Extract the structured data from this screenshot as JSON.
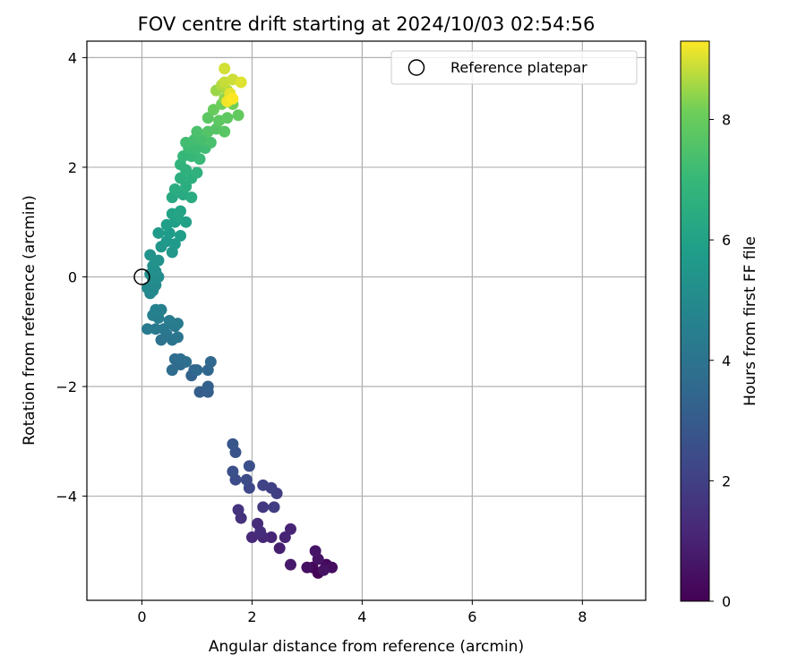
{
  "chart_data": {
    "type": "scatter",
    "title": "FOV centre drift starting at 2024/10/03 02:54:56",
    "xlabel": "Angular distance from reference (arcmin)",
    "ylabel": "Rotation from reference (arcmin)",
    "xlim": [
      -1.0,
      9.15
    ],
    "ylim": [
      -5.9,
      4.3
    ],
    "xticks": [
      0,
      2,
      4,
      6,
      8
    ],
    "xtick_labels": [
      "0",
      "2",
      "4",
      "6",
      "8"
    ],
    "yticks": [
      -4,
      -2,
      0,
      2,
      4
    ],
    "ytick_labels": [
      "−4",
      "−2",
      "0",
      "2",
      "4"
    ],
    "grid": true,
    "legend": {
      "placement": "top-right",
      "entries": [
        "Reference platepar"
      ]
    },
    "colormap": "viridis",
    "colorbar": {
      "label": "Hours from first FF file",
      "range": [
        0,
        9.3
      ],
      "ticks": [
        0,
        2,
        4,
        6,
        8
      ],
      "tick_labels": [
        "0",
        "2",
        "4",
        "6",
        "8"
      ]
    },
    "reference_point": {
      "x": 0.0,
      "y": 0.0
    },
    "points": [
      {
        "x": 3.2,
        "y": -5.4,
        "h": 0.05
      },
      {
        "x": 3.1,
        "y": -5.3,
        "h": 0.15
      },
      {
        "x": 3.35,
        "y": -5.25,
        "h": 0.25
      },
      {
        "x": 3.45,
        "y": -5.3,
        "h": 0.35
      },
      {
        "x": 3.0,
        "y": -5.3,
        "h": 0.45
      },
      {
        "x": 3.2,
        "y": -5.15,
        "h": 0.55
      },
      {
        "x": 3.15,
        "y": -5.0,
        "h": 0.6
      },
      {
        "x": 3.3,
        "y": -5.35,
        "h": 0.5
      },
      {
        "x": 2.7,
        "y": -5.25,
        "h": 0.75
      },
      {
        "x": 2.5,
        "y": -4.95,
        "h": 0.9
      },
      {
        "x": 2.6,
        "y": -4.75,
        "h": 1.0
      },
      {
        "x": 2.7,
        "y": -4.6,
        "h": 1.05
      },
      {
        "x": 2.35,
        "y": -4.75,
        "h": 1.1
      },
      {
        "x": 2.2,
        "y": -4.75,
        "h": 1.2
      },
      {
        "x": 2.0,
        "y": -4.75,
        "h": 1.25
      },
      {
        "x": 2.1,
        "y": -4.5,
        "h": 1.3
      },
      {
        "x": 2.15,
        "y": -4.65,
        "h": 1.35
      },
      {
        "x": 1.8,
        "y": -4.4,
        "h": 1.5
      },
      {
        "x": 1.75,
        "y": -4.25,
        "h": 1.6
      },
      {
        "x": 2.2,
        "y": -4.2,
        "h": 1.75
      },
      {
        "x": 2.4,
        "y": -4.2,
        "h": 1.85
      },
      {
        "x": 2.45,
        "y": -3.95,
        "h": 1.95
      },
      {
        "x": 2.35,
        "y": -3.85,
        "h": 2.05
      },
      {
        "x": 2.2,
        "y": -3.8,
        "h": 2.1
      },
      {
        "x": 1.95,
        "y": -3.85,
        "h": 2.3
      },
      {
        "x": 1.9,
        "y": -3.7,
        "h": 2.4
      },
      {
        "x": 1.7,
        "y": -3.7,
        "h": 2.45
      },
      {
        "x": 1.65,
        "y": -3.55,
        "h": 2.55
      },
      {
        "x": 1.95,
        "y": -3.45,
        "h": 2.6
      },
      {
        "x": 1.7,
        "y": -3.2,
        "h": 2.7
      },
      {
        "x": 1.65,
        "y": -3.05,
        "h": 2.8
      },
      {
        "x": 1.05,
        "y": -2.1,
        "h": 3.1
      },
      {
        "x": 1.2,
        "y": -2.1,
        "h": 3.15
      },
      {
        "x": 1.2,
        "y": -2.0,
        "h": 3.2
      },
      {
        "x": 0.9,
        "y": -1.8,
        "h": 3.3
      },
      {
        "x": 0.95,
        "y": -1.7,
        "h": 3.35
      },
      {
        "x": 1.2,
        "y": -1.7,
        "h": 3.45
      },
      {
        "x": 1.25,
        "y": -1.55,
        "h": 3.5
      },
      {
        "x": 1.0,
        "y": -1.7,
        "h": 3.55
      },
      {
        "x": 0.7,
        "y": -1.6,
        "h": 3.6
      },
      {
        "x": 0.55,
        "y": -1.7,
        "h": 3.65
      },
      {
        "x": 0.6,
        "y": -1.5,
        "h": 3.7
      },
      {
        "x": 0.7,
        "y": -1.5,
        "h": 3.75
      },
      {
        "x": 0.8,
        "y": -1.55,
        "h": 3.8
      },
      {
        "x": 0.35,
        "y": -1.15,
        "h": 3.95
      },
      {
        "x": 0.55,
        "y": -1.15,
        "h": 4.0
      },
      {
        "x": 0.65,
        "y": -1.1,
        "h": 4.05
      },
      {
        "x": 0.45,
        "y": -1.05,
        "h": 4.1
      },
      {
        "x": 0.6,
        "y": -0.9,
        "h": 4.15
      },
      {
        "x": 0.4,
        "y": -0.95,
        "h": 4.2
      },
      {
        "x": 0.25,
        "y": -0.95,
        "h": 4.25
      },
      {
        "x": 0.1,
        "y": -0.95,
        "h": 4.3
      },
      {
        "x": 0.65,
        "y": -0.85,
        "h": 4.35
      },
      {
        "x": 0.5,
        "y": -0.8,
        "h": 4.4
      },
      {
        "x": 0.3,
        "y": -0.75,
        "h": 4.45
      },
      {
        "x": 0.2,
        "y": -0.7,
        "h": 4.5
      },
      {
        "x": 0.35,
        "y": -0.6,
        "h": 4.55
      },
      {
        "x": 0.25,
        "y": -0.6,
        "h": 4.6
      },
      {
        "x": 0.15,
        "y": -0.3,
        "h": 4.85
      },
      {
        "x": 0.2,
        "y": -0.25,
        "h": 4.9
      },
      {
        "x": 0.1,
        "y": -0.2,
        "h": 4.95
      },
      {
        "x": 0.25,
        "y": -0.15,
        "h": 5.0
      },
      {
        "x": 0.2,
        "y": -0.05,
        "h": 5.05
      },
      {
        "x": 0.3,
        "y": 0.0,
        "h": 5.1
      },
      {
        "x": 0.25,
        "y": 0.1,
        "h": 5.15
      },
      {
        "x": 0.15,
        "y": 0.05,
        "h": 5.2
      },
      {
        "x": 0.2,
        "y": 0.2,
        "h": 5.25
      },
      {
        "x": 0.3,
        "y": 0.3,
        "h": 5.3
      },
      {
        "x": 0.15,
        "y": 0.4,
        "h": 5.35
      },
      {
        "x": 0.35,
        "y": 0.55,
        "h": 5.5
      },
      {
        "x": 0.55,
        "y": 0.45,
        "h": 5.55
      },
      {
        "x": 0.45,
        "y": 0.65,
        "h": 5.6
      },
      {
        "x": 0.6,
        "y": 0.6,
        "h": 5.65
      },
      {
        "x": 0.3,
        "y": 0.8,
        "h": 5.7
      },
      {
        "x": 0.5,
        "y": 0.8,
        "h": 5.75
      },
      {
        "x": 0.7,
        "y": 0.75,
        "h": 5.8
      },
      {
        "x": 0.45,
        "y": 0.95,
        "h": 5.85
      },
      {
        "x": 0.6,
        "y": 1.0,
        "h": 5.9
      },
      {
        "x": 0.8,
        "y": 1.0,
        "h": 5.95
      },
      {
        "x": 0.55,
        "y": 1.15,
        "h": 6.0
      },
      {
        "x": 0.7,
        "y": 1.2,
        "h": 6.05
      },
      {
        "x": 0.65,
        "y": 1.1,
        "h": 6.1
      },
      {
        "x": 0.55,
        "y": 1.45,
        "h": 6.3
      },
      {
        "x": 0.75,
        "y": 1.5,
        "h": 6.35
      },
      {
        "x": 0.9,
        "y": 1.45,
        "h": 6.4
      },
      {
        "x": 0.6,
        "y": 1.6,
        "h": 6.45
      },
      {
        "x": 0.8,
        "y": 1.65,
        "h": 6.5
      },
      {
        "x": 0.7,
        "y": 1.8,
        "h": 6.55
      },
      {
        "x": 0.9,
        "y": 1.8,
        "h": 6.6
      },
      {
        "x": 0.8,
        "y": 1.95,
        "h": 6.65
      },
      {
        "x": 1.0,
        "y": 1.9,
        "h": 6.7
      },
      {
        "x": 0.7,
        "y": 2.05,
        "h": 6.75
      },
      {
        "x": 0.75,
        "y": 2.2,
        "h": 6.95
      },
      {
        "x": 0.9,
        "y": 2.2,
        "h": 7.0
      },
      {
        "x": 1.05,
        "y": 2.15,
        "h": 7.05
      },
      {
        "x": 0.85,
        "y": 2.35,
        "h": 7.1
      },
      {
        "x": 1.0,
        "y": 2.35,
        "h": 7.15
      },
      {
        "x": 1.15,
        "y": 2.35,
        "h": 7.2
      },
      {
        "x": 0.8,
        "y": 2.45,
        "h": 7.25
      },
      {
        "x": 0.95,
        "y": 2.5,
        "h": 7.3
      },
      {
        "x": 1.1,
        "y": 2.5,
        "h": 7.35
      },
      {
        "x": 1.25,
        "y": 2.45,
        "h": 7.4
      },
      {
        "x": 1.0,
        "y": 2.65,
        "h": 7.45
      },
      {
        "x": 1.2,
        "y": 2.65,
        "h": 7.6
      },
      {
        "x": 1.35,
        "y": 2.7,
        "h": 7.65
      },
      {
        "x": 1.5,
        "y": 2.65,
        "h": 7.7
      },
      {
        "x": 1.2,
        "y": 2.9,
        "h": 7.75
      },
      {
        "x": 1.4,
        "y": 2.85,
        "h": 7.8
      },
      {
        "x": 1.55,
        "y": 2.9,
        "h": 7.85
      },
      {
        "x": 1.75,
        "y": 2.95,
        "h": 7.9
      },
      {
        "x": 1.3,
        "y": 3.05,
        "h": 8.0
      },
      {
        "x": 1.45,
        "y": 3.15,
        "h": 8.1
      },
      {
        "x": 1.65,
        "y": 3.15,
        "h": 8.15
      },
      {
        "x": 1.5,
        "y": 3.25,
        "h": 8.4
      },
      {
        "x": 1.35,
        "y": 3.4,
        "h": 8.5
      },
      {
        "x": 1.55,
        "y": 3.4,
        "h": 8.6
      },
      {
        "x": 1.45,
        "y": 3.5,
        "h": 8.7
      },
      {
        "x": 1.6,
        "y": 3.3,
        "h": 8.8
      },
      {
        "x": 1.5,
        "y": 3.55,
        "h": 8.85
      },
      {
        "x": 1.65,
        "y": 3.6,
        "h": 8.9
      },
      {
        "x": 1.5,
        "y": 3.8,
        "h": 8.95
      },
      {
        "x": 1.8,
        "y": 3.55,
        "h": 9.05
      },
      {
        "x": 1.6,
        "y": 3.35,
        "h": 9.1
      },
      {
        "x": 1.55,
        "y": 3.2,
        "h": 9.2
      },
      {
        "x": 1.65,
        "y": 3.25,
        "h": 9.3
      }
    ]
  }
}
